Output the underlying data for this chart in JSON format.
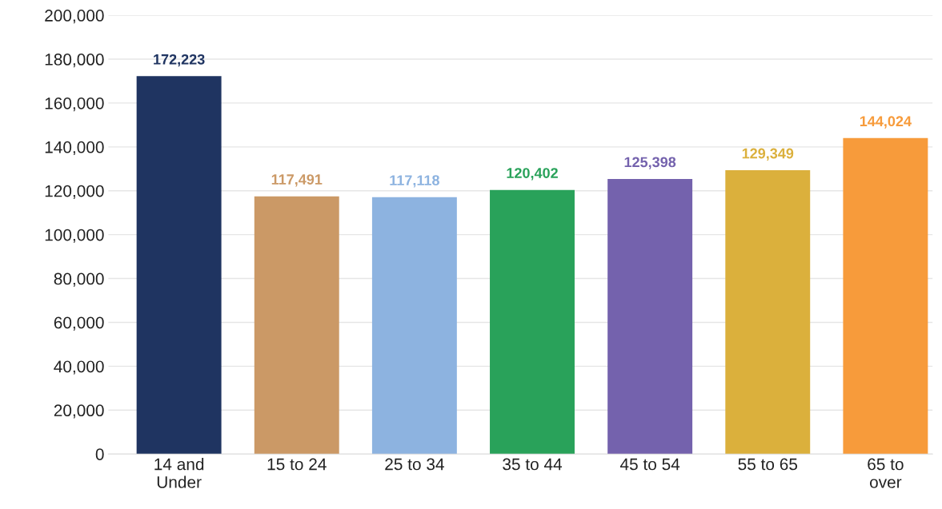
{
  "chart_data": {
    "type": "bar",
    "categories": [
      "14 and\nUnder",
      "15 to 24",
      "25 to 34",
      "35 to 44",
      "45 to 54",
      "55 to 65",
      "65 to\nover"
    ],
    "series": [
      {
        "colors": [
          "#1f3461",
          "#cb9966",
          "#8db3e0",
          "#29a25a",
          "#7462ad",
          "#dbb03c",
          "#f79b3b"
        ],
        "values": [
          172223,
          117491,
          117118,
          120402,
          125398,
          129349,
          144024
        ],
        "value_labels": [
          "172,223",
          "117,491",
          "117,118",
          "120,402",
          "125,398",
          "129,349",
          "144,024"
        ]
      }
    ],
    "ylim": [
      0,
      200000
    ],
    "yticks": [
      {
        "value": 0,
        "label": "0"
      },
      {
        "value": 20000,
        "label": "20,000"
      },
      {
        "value": 40000,
        "label": "40,000"
      },
      {
        "value": 60000,
        "label": "60,000"
      },
      {
        "value": 80000,
        "label": "80,000"
      },
      {
        "value": 100000,
        "label": "100,000"
      },
      {
        "value": 120000,
        "label": "120,000"
      },
      {
        "value": 140000,
        "label": "140,000"
      },
      {
        "value": 160000,
        "label": "160,000"
      },
      {
        "value": 180000,
        "label": "180,000"
      },
      {
        "value": 200000,
        "label": "200,000"
      }
    ],
    "grid": "y"
  }
}
